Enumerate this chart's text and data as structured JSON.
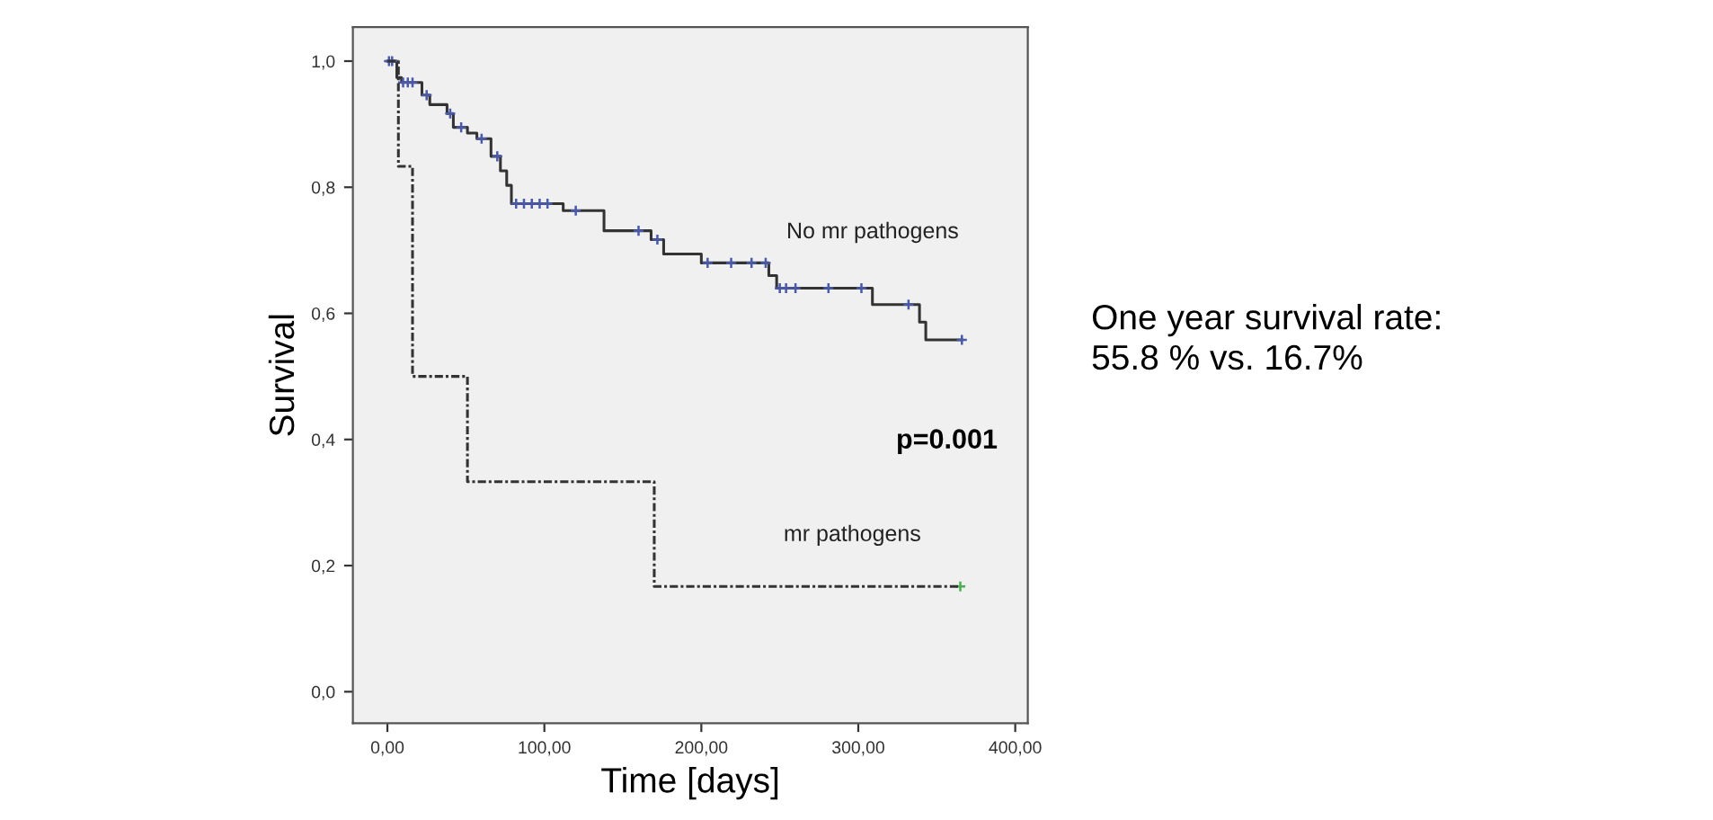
{
  "chart_data": {
    "type": "step",
    "xlabel": "Time [days]",
    "ylabel": "Survival",
    "xlim": [
      -22,
      408
    ],
    "ylim": [
      -0.05,
      1.054
    ],
    "xticks": [
      {
        "value": 0,
        "label": "0,00"
      },
      {
        "value": 100,
        "label": "100,00"
      },
      {
        "value": 200,
        "label": "200,00"
      },
      {
        "value": 300,
        "label": "300,00"
      },
      {
        "value": 400,
        "label": "400,00"
      }
    ],
    "yticks": [
      {
        "value": 0,
        "label": "0,0"
      },
      {
        "value": 0.2,
        "label": "0,2"
      },
      {
        "value": 0.4,
        "label": "0,4"
      },
      {
        "value": 0.6,
        "label": "0,6"
      },
      {
        "value": 0.8,
        "label": "0,8"
      },
      {
        "value": 1.0,
        "label": "1,0"
      }
    ],
    "grid": false,
    "legend": false,
    "series": [
      {
        "color": "#333333",
        "line_style": "solid",
        "x": [
          0,
          6,
          9,
          22,
          27,
          38,
          42,
          51,
          57,
          66,
          72,
          76,
          79,
          112,
          138,
          168,
          176,
          200,
          243,
          248,
          309,
          339,
          343,
          366
        ],
        "values": [
          1.0,
          0.974,
          0.966,
          0.946,
          0.931,
          0.917,
          0.895,
          0.886,
          0.877,
          0.849,
          0.826,
          0.803,
          0.774,
          0.763,
          0.731,
          0.717,
          0.694,
          0.68,
          0.66,
          0.64,
          0.614,
          0.586,
          0.558,
          0.558
        ]
      },
      {
        "type": "scatter",
        "color": "#4a5aa8",
        "marker": "cross",
        "x": [
          1,
          3,
          10,
          13,
          16,
          25,
          40,
          47,
          60,
          70,
          82,
          87,
          92,
          97,
          102,
          120,
          160,
          172,
          204,
          219,
          232,
          241,
          250,
          254,
          260,
          281,
          302,
          332,
          366
        ],
        "values": [
          1.0,
          1.0,
          0.966,
          0.966,
          0.966,
          0.946,
          0.917,
          0.895,
          0.877,
          0.849,
          0.774,
          0.774,
          0.774,
          0.774,
          0.774,
          0.763,
          0.731,
          0.717,
          0.68,
          0.68,
          0.68,
          0.68,
          0.64,
          0.64,
          0.64,
          0.64,
          0.64,
          0.614,
          0.558
        ]
      },
      {
        "color": "#333333",
        "line_style": "dashdot",
        "x": [
          0,
          7,
          16,
          51,
          170,
          365
        ],
        "values": [
          1.0,
          0.833,
          0.5,
          0.333,
          0.167,
          0.167
        ]
      },
      {
        "type": "scatter",
        "color": "#4caf50",
        "marker": "cross",
        "x": [
          365
        ],
        "values": [
          0.167
        ]
      }
    ],
    "annotations": [
      "No mr pathogens",
      "mr pathogens",
      "p=0.001",
      "One year survival rate:\n55.8 % vs. 16.7%"
    ]
  }
}
